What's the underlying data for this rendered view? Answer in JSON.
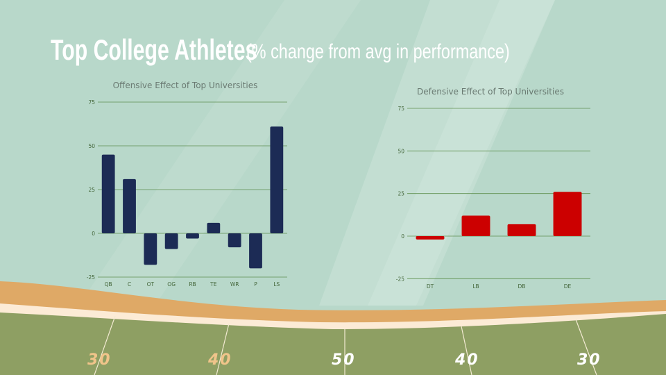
{
  "slide": {
    "title_main": "Top College Athletes",
    "title_sub": "(% change from avg in performance)"
  },
  "colors": {
    "background": "#b8d8ca",
    "offense_bar": "#1c2b55",
    "defense_bar": "#cc0000",
    "grid": "#5f8f4e",
    "field": "#8e9f63",
    "sand": "#dfa966"
  },
  "field": {
    "yard_numbers": [
      "30",
      "40",
      "50",
      "40",
      "30"
    ]
  },
  "chart_data": [
    {
      "type": "bar",
      "title": "Offensive Effect of Top Universities",
      "categories": [
        "QB",
        "C",
        "OT",
        "OG",
        "RB",
        "TE",
        "WR",
        "P",
        "LS"
      ],
      "values": [
        45,
        31,
        -18,
        -9,
        -3,
        6,
        -8,
        -20,
        61
      ],
      "ylim": [
        -25,
        75
      ],
      "yticks": [
        -25,
        0,
        25,
        50,
        75
      ],
      "grid": true,
      "legend": "none"
    },
    {
      "type": "bar",
      "title": "Defensive Effect of Top Universities",
      "categories": [
        "DT",
        "LB",
        "DB",
        "DE"
      ],
      "values": [
        -2,
        12,
        7,
        26
      ],
      "ylim": [
        -25,
        75
      ],
      "yticks": [
        -25,
        0,
        25,
        50,
        75
      ],
      "grid": true,
      "legend": "none"
    }
  ]
}
